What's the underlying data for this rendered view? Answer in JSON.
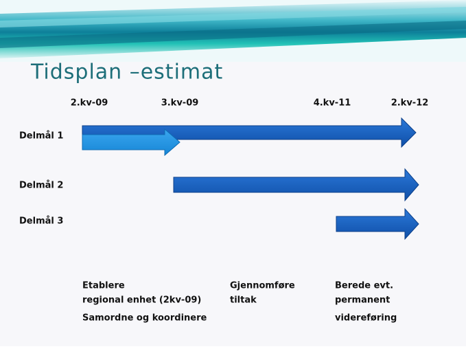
{
  "title": "Tidsplan –estimat",
  "timeline": [
    "2.kv-09",
    "3.kv-09",
    "4.kv-11",
    "2.kv-12"
  ],
  "rows": [
    "Delmål 1",
    "Delmål 2",
    "Delmål 3"
  ],
  "notes": [
    [
      "Etablere",
      "regional enhet (2kv-09)",
      "Samordne og koordinere"
    ],
    [
      "Gjennomføre",
      "tiltak"
    ],
    [
      "Berede evt.",
      "permanent",
      "videreføring"
    ]
  ]
}
